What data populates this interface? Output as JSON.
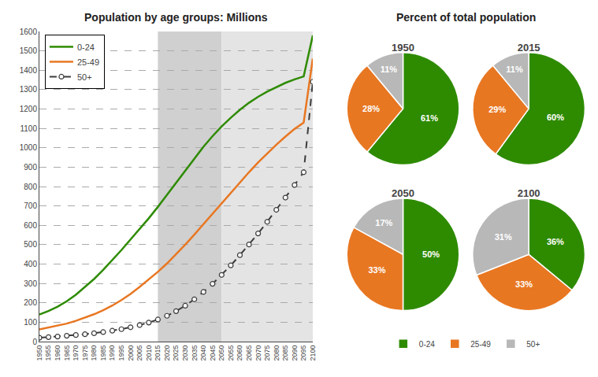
{
  "chart_data": [
    {
      "type": "line",
      "title": "Population by age groups: Millions",
      "x": [
        1950,
        1955,
        1960,
        1965,
        1970,
        1975,
        1980,
        1985,
        1990,
        1995,
        2000,
        2005,
        2010,
        2015,
        2020,
        2025,
        2030,
        2035,
        2040,
        2045,
        2050,
        2055,
        2060,
        2065,
        2070,
        2075,
        2080,
        2085,
        2090,
        2095,
        2100
      ],
      "xlim": [
        1950,
        2100
      ],
      "xticks": [
        1950,
        1955,
        1960,
        1965,
        1970,
        1975,
        1980,
        1985,
        1990,
        1995,
        2000,
        2005,
        2010,
        2015,
        2020,
        2025,
        2030,
        2035,
        2040,
        2045,
        2050,
        2055,
        2060,
        2065,
        2070,
        2075,
        2080,
        2085,
        2090,
        2095,
        2100
      ],
      "ylim": [
        0,
        1600
      ],
      "yticks": [
        0,
        100,
        200,
        300,
        400,
        500,
        600,
        700,
        800,
        900,
        1000,
        1100,
        1200,
        1300,
        1400,
        1500,
        1600
      ],
      "grid": true,
      "legend": "upper left",
      "spans": [
        {
          "start": 2015,
          "end": 2050,
          "color": "#d0d0d0"
        },
        {
          "start": 2050,
          "end": 2100,
          "color": "#e4e4e4"
        }
      ],
      "series": [
        {
          "name": "0-24",
          "color": "#2e8b00",
          "line_style": "solid",
          "values": [
            140,
            158,
            180,
            208,
            242,
            281,
            323,
            370,
            420,
            472,
            527,
            580,
            636,
            695,
            757,
            820,
            884,
            946,
            1005,
            1060,
            1110,
            1155,
            1196,
            1232,
            1263,
            1290,
            1313,
            1335,
            1353,
            1368,
            1580
          ]
        },
        {
          "name": "25-49",
          "color": "#e87722",
          "line_style": "solid",
          "values": [
            63,
            72,
            82,
            93,
            107,
            123,
            141,
            162,
            186,
            214,
            246,
            282,
            320,
            360,
            403,
            450,
            500,
            552,
            606,
            660,
            714,
            768,
            822,
            874,
            924,
            972,
            1016,
            1058,
            1097,
            1130,
            1460
          ]
        },
        {
          "name": "50+",
          "color": "#3c3c3c",
          "line_style": "dashed",
          "marker": "circle",
          "values": [
            20,
            23,
            26,
            30,
            34,
            38,
            43,
            49,
            56,
            64,
            74,
            85,
            98,
            114,
            133,
            157,
            185,
            218,
            256,
            298,
            344,
            393,
            446,
            501,
            558,
            618,
            680,
            743,
            808,
            874,
            1340
          ]
        }
      ]
    },
    {
      "type": "pie",
      "title": "Percent of total population",
      "categories": [
        "0-24",
        "25-49",
        "50+"
      ],
      "colors": [
        "#2e8b00",
        "#e87722",
        "#b8b8b8"
      ],
      "data_labels": true,
      "series": [
        {
          "name": "1950",
          "values": [
            61,
            28,
            11
          ],
          "value_labels": [
            "61%",
            "28%",
            "11%"
          ]
        },
        {
          "name": "2015",
          "values": [
            60,
            29,
            11
          ],
          "value_labels": [
            "60%",
            "29%",
            "11%"
          ]
        },
        {
          "name": "2050",
          "values": [
            50,
            33,
            17
          ],
          "value_labels": [
            "50%",
            "33%",
            "17%"
          ]
        },
        {
          "name": "2100",
          "values": [
            36,
            33,
            31
          ],
          "value_labels": [
            "36%",
            "33%",
            "31%"
          ]
        }
      ]
    }
  ]
}
